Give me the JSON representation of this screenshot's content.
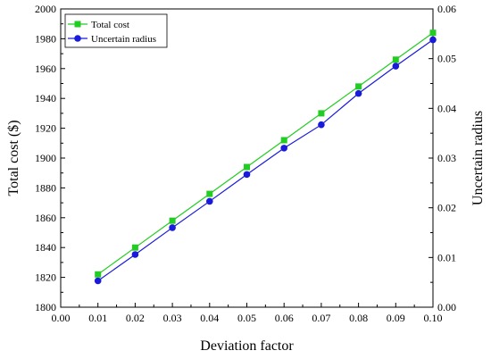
{
  "chart_data": {
    "type": "line",
    "x": [
      0.01,
      0.02,
      0.03,
      0.04,
      0.05,
      0.06,
      0.07,
      0.08,
      0.09,
      0.1
    ],
    "xlabel": "Deviation factor",
    "xlim": [
      0.0,
      0.1
    ],
    "xticks": [
      "0.00",
      "0.01",
      "0.02",
      "0.03",
      "0.04",
      "0.05",
      "0.06",
      "0.07",
      "0.08",
      "0.09",
      "0.10"
    ],
    "ylabel_left": "Total cost ($)",
    "ylim_left": [
      1800,
      2000
    ],
    "yticks_left": [
      "1800",
      "1820",
      "1840",
      "1860",
      "1880",
      "1900",
      "1920",
      "1940",
      "1960",
      "1980",
      "2000"
    ],
    "ylabel_right": "Uncertain radius",
    "ylim_right": [
      0.0,
      0.06
    ],
    "yticks_right": [
      "0.00",
      "0.01",
      "0.02",
      "0.03",
      "0.04",
      "0.05",
      "0.06"
    ],
    "legend_position": "top-left",
    "grid": false,
    "series": [
      {
        "name": "Total cost",
        "axis": "left",
        "color": "#22cc22",
        "marker": "square",
        "values": [
          1822,
          1840,
          1858,
          1876,
          1894,
          1912,
          1930,
          1948,
          1966,
          1984
        ]
      },
      {
        "name": "Uncertain radius",
        "axis": "right",
        "color": "#1a1adb",
        "marker": "circle",
        "values": [
          0.0053,
          0.0106,
          0.016,
          0.0213,
          0.0267,
          0.032,
          0.0367,
          0.043,
          0.0485,
          0.0538
        ]
      }
    ]
  }
}
